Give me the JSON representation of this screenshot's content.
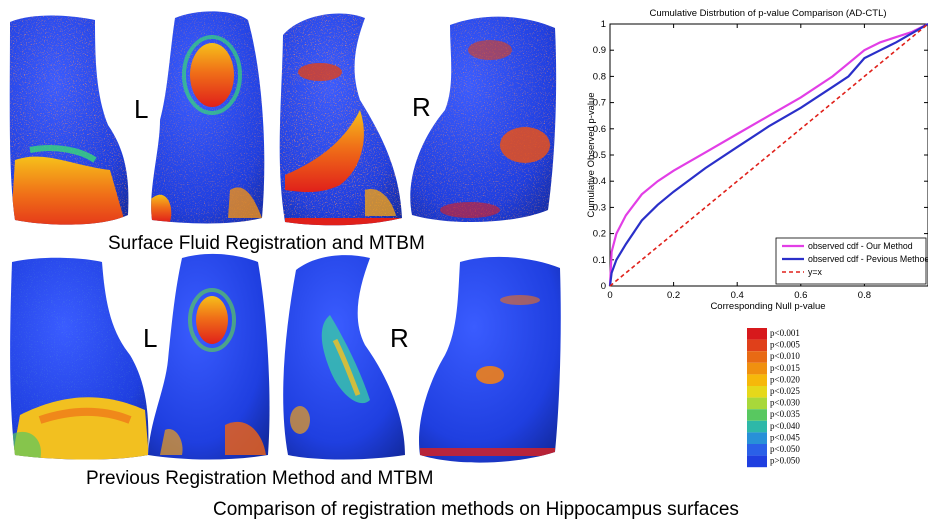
{
  "panels": {
    "top": {
      "caption": "Surface Fluid Registration and MTBM",
      "left_label": "L",
      "right_label": "R"
    },
    "bottom": {
      "caption": "Previous Registration Method and MTBM",
      "left_label": "L",
      "right_label": "R"
    }
  },
  "figure_caption": "Comparison of registration methods on Hippocampus surfaces",
  "colors": {
    "surface_blue": "#1f3fe0",
    "hot_red": "#e8281a",
    "our_method": "#e23ee6",
    "previous_method": "#2a2fc9",
    "diagonal": "#e0201a"
  },
  "colorbar": {
    "labels": [
      "p<0.001",
      "p<0.005",
      "p<0.010",
      "p<0.015",
      "p<0.020",
      "p<0.025",
      "p<0.030",
      "p<0.035",
      "p<0.040",
      "p<0.045",
      "p<0.050",
      "p>0.050"
    ],
    "colors": [
      "#d7191c",
      "#e0401a",
      "#e86a14",
      "#f0900f",
      "#f6b80a",
      "#e6d81a",
      "#a8d83a",
      "#58c860",
      "#2eb8a8",
      "#2890d8",
      "#2a60e8",
      "#1f3fe0"
    ]
  },
  "chart_data": {
    "type": "line",
    "title": "Cumulative Distrbution of p-value Comparison (AD-CTL)",
    "xlabel": "Corresponding Null p-value",
    "ylabel": "Cumulative Observed p-value",
    "xlim": [
      0,
      1
    ],
    "ylim": [
      0,
      1
    ],
    "xticks": [
      0,
      0.2,
      0.4,
      0.6,
      0.8
    ],
    "yticks": [
      0,
      0.1,
      0.2,
      0.3,
      0.4,
      0.5,
      0.6,
      0.7,
      0.8,
      0.9,
      1
    ],
    "xtick_labels": [
      "0",
      "0.2",
      "0.4",
      "0.6",
      "0.8"
    ],
    "ytick_labels": [
      "0",
      "0.1",
      "0.2",
      "0.3",
      "0.4",
      "0.5",
      "0.6",
      "0.7",
      "0.8",
      "0.9",
      "1"
    ],
    "legend_position": "bottom-right",
    "series": [
      {
        "name": "observed cdf - Our Method",
        "color": "#e23ee6",
        "style": "solid",
        "x": [
          0,
          0.005,
          0.02,
          0.05,
          0.1,
          0.15,
          0.2,
          0.3,
          0.4,
          0.5,
          0.6,
          0.7,
          0.75,
          0.8,
          0.85,
          0.9,
          0.95,
          1.0
        ],
        "y": [
          0,
          0.13,
          0.2,
          0.27,
          0.35,
          0.4,
          0.44,
          0.51,
          0.58,
          0.65,
          0.72,
          0.8,
          0.85,
          0.9,
          0.93,
          0.95,
          0.97,
          1.0
        ]
      },
      {
        "name": "observed cdf - Pevious Method",
        "color": "#2a2fc9",
        "style": "solid",
        "x": [
          0,
          0.005,
          0.02,
          0.05,
          0.1,
          0.15,
          0.2,
          0.3,
          0.4,
          0.5,
          0.6,
          0.7,
          0.75,
          0.8,
          0.85,
          0.9,
          0.95,
          1.0
        ],
        "y": [
          0,
          0.05,
          0.1,
          0.16,
          0.25,
          0.31,
          0.36,
          0.45,
          0.53,
          0.61,
          0.68,
          0.76,
          0.8,
          0.87,
          0.9,
          0.93,
          0.965,
          1.0
        ]
      },
      {
        "name": "y=x",
        "color": "#e0201a",
        "style": "dashed",
        "x": [
          0,
          1
        ],
        "y": [
          0,
          1
        ]
      }
    ]
  }
}
